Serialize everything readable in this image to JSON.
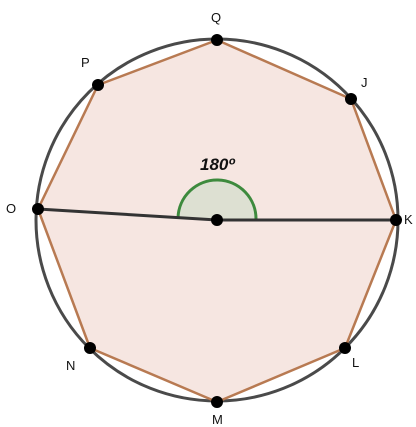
{
  "diagram": {
    "angle_label": "180º",
    "vertices": [
      {
        "id": "Q",
        "label": "Q"
      },
      {
        "id": "J",
        "label": "J"
      },
      {
        "id": "K",
        "label": "K"
      },
      {
        "id": "L",
        "label": "L"
      },
      {
        "id": "M",
        "label": "M"
      },
      {
        "id": "N",
        "label": "N"
      },
      {
        "id": "O",
        "label": "O"
      },
      {
        "id": "P",
        "label": "P"
      }
    ],
    "center_label": "",
    "colors": {
      "circle": "#4a4a4a",
      "polygon_stroke": "#b87a52",
      "polygon_fill": "#f6e6e1",
      "angle_stroke": "#3d8a3d",
      "angle_fill": "#dde0d2",
      "radius": "#333333",
      "point": "#000000"
    }
  }
}
